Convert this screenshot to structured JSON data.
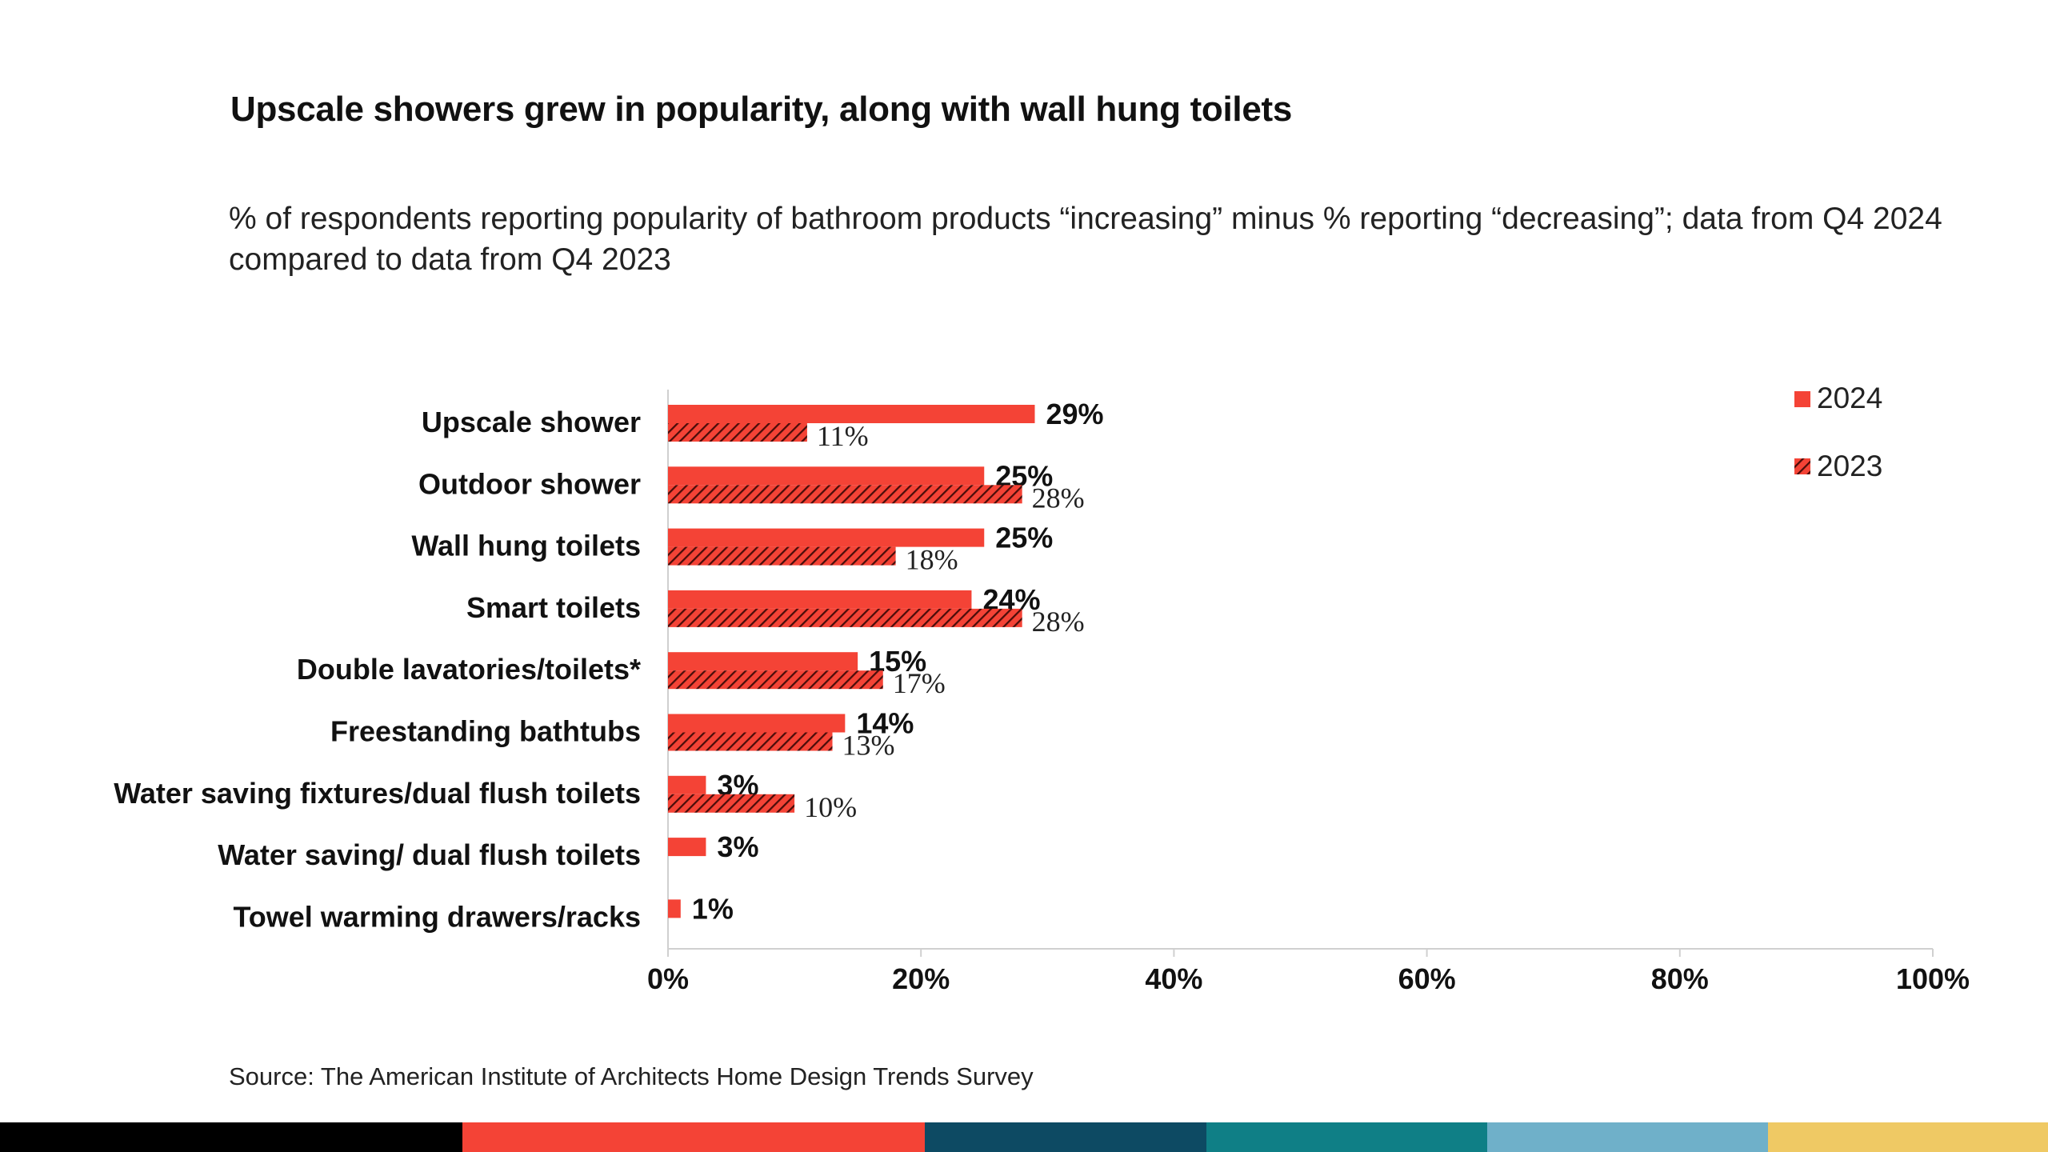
{
  "title": "Upscale showers grew in popularity, along with wall hung toilets",
  "subtitle": "% of respondents reporting popularity of bathroom products “increasing” minus % reporting “decreasing”; data from Q4 2024 compared to data from Q4 2023",
  "source": "Source: The American Institute of Architects Home Design Trends Survey",
  "colors": {
    "bar_2024": "#f44336",
    "bar_2023": "#f44336",
    "hatch": "#4a0d0a",
    "axis": "#d0d0d0"
  },
  "color_strip": [
    "#000000",
    "#f44336",
    "#0d4a63",
    "#0f7f86",
    "#6fb0c9",
    "#efc964"
  ],
  "chart_data": {
    "type": "bar",
    "orientation": "horizontal",
    "categories": [
      "Upscale shower",
      "Outdoor shower",
      "Wall hung toilets",
      "Smart toilets",
      "Double lavatories/toilets*",
      "Freestanding bathtubs",
      "Water saving fixtures/dual flush toilets",
      "Water saving/ dual flush toilets",
      "Towel warming drawers/racks"
    ],
    "series": [
      {
        "name": "2024",
        "values": [
          29,
          25,
          25,
          24,
          15,
          14,
          3,
          3,
          1
        ],
        "labels": [
          "29%",
          "25%",
          "25%",
          "24%",
          "15%",
          "14%",
          "3%",
          "3%",
          "1%"
        ]
      },
      {
        "name": "2023",
        "values": [
          11,
          28,
          18,
          28,
          17,
          13,
          10,
          null,
          null
        ],
        "labels": [
          "11%",
          "28%",
          "18%",
          "28%",
          "17%",
          "13%",
          "10%",
          "",
          ""
        ]
      }
    ],
    "x_ticks": [
      "0%",
      "20%",
      "40%",
      "60%",
      "80%",
      "100%"
    ],
    "xlim": [
      0,
      100
    ],
    "legend": {
      "position": "top-right",
      "entries": [
        "2024",
        "2023"
      ]
    },
    "grid": false
  }
}
